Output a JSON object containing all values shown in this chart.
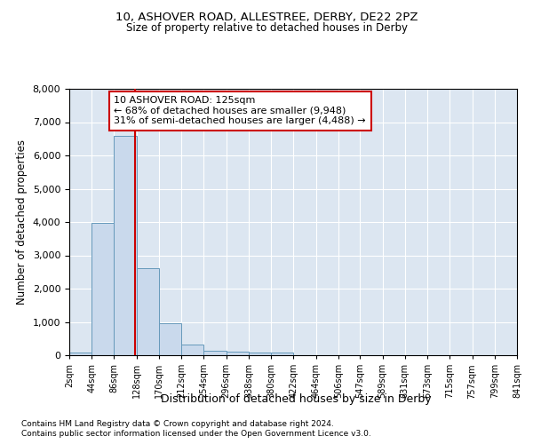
{
  "title1": "10, ASHOVER ROAD, ALLESTREE, DERBY, DE22 2PZ",
  "title2": "Size of property relative to detached houses in Derby",
  "xlabel": "Distribution of detached houses by size in Derby",
  "ylabel": "Number of detached properties",
  "footer1": "Contains HM Land Registry data © Crown copyright and database right 2024.",
  "footer2": "Contains public sector information licensed under the Open Government Licence v3.0.",
  "bar_edges": [
    2,
    44,
    86,
    128,
    170,
    212,
    254,
    296,
    338,
    380,
    422,
    464,
    506,
    547,
    589,
    631,
    673,
    715,
    757,
    799,
    841
  ],
  "bar_heights": [
    75,
    3980,
    6590,
    2620,
    960,
    310,
    130,
    115,
    90,
    75,
    0,
    0,
    0,
    0,
    0,
    0,
    0,
    0,
    0,
    0
  ],
  "bar_color": "#c9d9ec",
  "bar_edge_color": "#6699bb",
  "vline_x": 125,
  "vline_color": "#cc0000",
  "annotation_line1": "10 ASHOVER ROAD: 125sqm",
  "annotation_line2": "← 68% of detached houses are smaller (9,948)",
  "annotation_line3": "31% of semi-detached houses are larger (4,488) →",
  "annotation_box_edgecolor": "#cc0000",
  "annotation_bg": "#ffffff",
  "ylim": [
    0,
    8000
  ],
  "yticks": [
    0,
    1000,
    2000,
    3000,
    4000,
    5000,
    6000,
    7000,
    8000
  ],
  "background_color": "#dce6f1",
  "grid_color": "#ffffff",
  "tick_labels": [
    "2sqm",
    "44sqm",
    "86sqm",
    "128sqm",
    "170sqm",
    "212sqm",
    "254sqm",
    "296sqm",
    "338sqm",
    "380sqm",
    "422sqm",
    "464sqm",
    "506sqm",
    "547sqm",
    "589sqm",
    "631sqm",
    "673sqm",
    "715sqm",
    "757sqm",
    "799sqm",
    "841sqm"
  ]
}
